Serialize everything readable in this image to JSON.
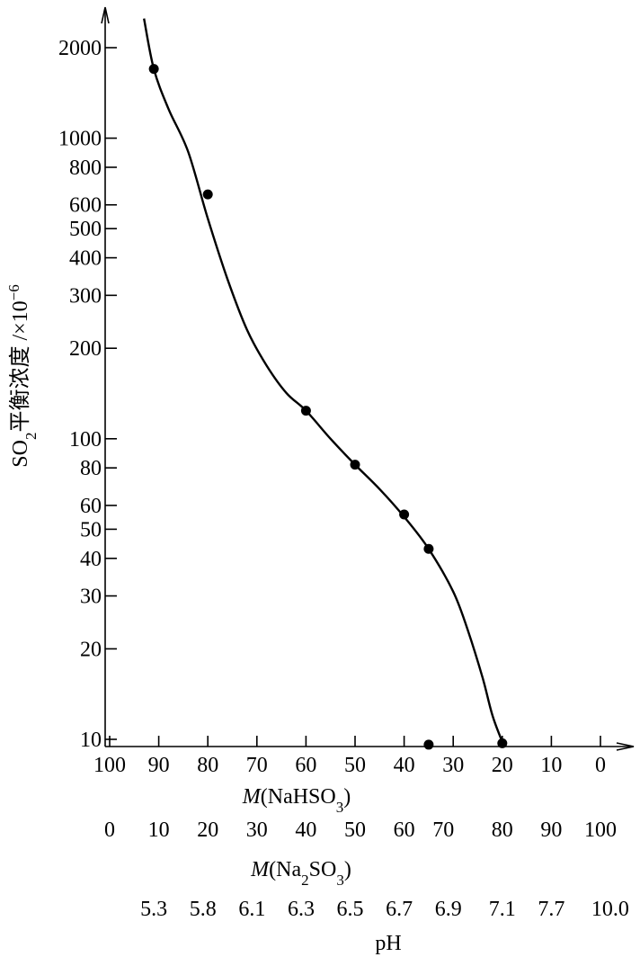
{
  "chart_data": {
    "type": "scatter",
    "ylabel": "SO2平衡浓度 /×10⁻⁶",
    "y_scale": "log",
    "ylim": [
      9.5,
      2600
    ],
    "y_ticks": [
      {
        "value": 2000,
        "label": "2000"
      },
      {
        "value": 1000,
        "label": "1000"
      },
      {
        "value": 800,
        "label": "800"
      },
      {
        "value": 600,
        "label": "600"
      },
      {
        "value": 500,
        "label": "500"
      },
      {
        "value": 400,
        "label": "400"
      },
      {
        "value": 300,
        "label": "300"
      },
      {
        "value": 200,
        "label": "200"
      },
      {
        "value": 100,
        "label": "100"
      },
      {
        "value": 80,
        "label": "80"
      },
      {
        "value": 60,
        "label": "60"
      },
      {
        "value": 50,
        "label": "50"
      },
      {
        "value": 40,
        "label": "40"
      },
      {
        "value": 30,
        "label": "30"
      },
      {
        "value": 20,
        "label": "20"
      },
      {
        "value": 10,
        "label": "10"
      }
    ],
    "xlabel_primary": "M(NaHSO3)",
    "xlim": [
      100,
      -8
    ],
    "x_ticks": [
      "100",
      "90",
      "80",
      "70",
      "60",
      "50",
      "40",
      "30",
      "20",
      "10",
      "0"
    ],
    "secondary_axes": [
      {
        "label": "M(Na2SO3)",
        "ticks": [
          {
            "at": 100,
            "label": "0"
          },
          {
            "at": 90,
            "label": "10"
          },
          {
            "at": 80,
            "label": "20"
          },
          {
            "at": 70,
            "label": "30"
          },
          {
            "at": 60,
            "label": "40"
          },
          {
            "at": 50,
            "label": "50"
          },
          {
            "at": 40,
            "label": "60"
          },
          {
            "at": 32,
            "label": "70"
          },
          {
            "at": 20,
            "label": "80"
          },
          {
            "at": 10,
            "label": "90"
          },
          {
            "at": 0,
            "label": "100"
          }
        ]
      },
      {
        "label": "pH",
        "ticks": [
          {
            "at": 91,
            "label": "5.3"
          },
          {
            "at": 81,
            "label": "5.8"
          },
          {
            "at": 71,
            "label": "6.1"
          },
          {
            "at": 61,
            "label": "6.3"
          },
          {
            "at": 51,
            "label": "6.5"
          },
          {
            "at": 41,
            "label": "6.7"
          },
          {
            "at": 31,
            "label": "6.9"
          },
          {
            "at": 20,
            "label": "7.1"
          },
          {
            "at": 10,
            "label": "7.7"
          },
          {
            "at": -2,
            "label": "10.0"
          }
        ]
      }
    ],
    "points": [
      {
        "x": 91,
        "y": 1700
      },
      {
        "x": 80,
        "y": 650
      },
      {
        "x": 60,
        "y": 124
      },
      {
        "x": 50,
        "y": 82
      },
      {
        "x": 40,
        "y": 56
      },
      {
        "x": 35,
        "y": 43
      },
      {
        "x": 35,
        "y": 9.6
      },
      {
        "x": 20,
        "y": 9.7
      }
    ],
    "curve": [
      {
        "x": 93,
        "y": 2500
      },
      {
        "x": 91,
        "y": 1700
      },
      {
        "x": 88,
        "y": 1250
      },
      {
        "x": 84,
        "y": 900
      },
      {
        "x": 80,
        "y": 540
      },
      {
        "x": 76,
        "y": 340
      },
      {
        "x": 72,
        "y": 230
      },
      {
        "x": 68,
        "y": 175
      },
      {
        "x": 64,
        "y": 142
      },
      {
        "x": 60,
        "y": 124
      },
      {
        "x": 55,
        "y": 100
      },
      {
        "x": 50,
        "y": 82
      },
      {
        "x": 45,
        "y": 68
      },
      {
        "x": 40,
        "y": 55
      },
      {
        "x": 35,
        "y": 43
      },
      {
        "x": 30,
        "y": 31
      },
      {
        "x": 27,
        "y": 23
      },
      {
        "x": 24,
        "y": 16
      },
      {
        "x": 22,
        "y": 12
      },
      {
        "x": 20,
        "y": 9.8
      }
    ],
    "grid": false
  }
}
